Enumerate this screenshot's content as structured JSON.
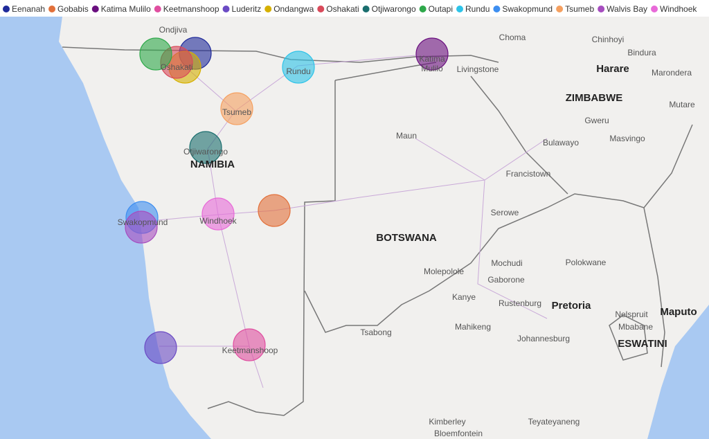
{
  "legend": {
    "items": [
      {
        "name": "Eenanah",
        "color": "#1f2a9a"
      },
      {
        "name": "Gobabis",
        "color": "#e2703a"
      },
      {
        "name": "Katima Mulilo",
        "color": "#6a0f7f"
      },
      {
        "name": "Keetmanshoop",
        "color": "#e04ea0"
      },
      {
        "name": "Luderitz",
        "color": "#6b4bc4"
      },
      {
        "name": "Ondangwa",
        "color": "#d6b000"
      },
      {
        "name": "Oshakati",
        "color": "#d94a5a"
      },
      {
        "name": "Otjiwarongo",
        "color": "#1a6e6e"
      },
      {
        "name": "Outapi",
        "color": "#2ea84a"
      },
      {
        "name": "Rundu",
        "color": "#2dc3e8"
      },
      {
        "name": "Swakopmund",
        "color": "#3d8ef0"
      },
      {
        "name": "Tsumeb",
        "color": "#f5a060"
      },
      {
        "name": "Walvis Bay",
        "color": "#a64dbf"
      },
      {
        "name": "Windhoek",
        "color": "#e86ad8"
      }
    ]
  },
  "map": {
    "labels": [
      "Ondjiva",
      "Oshakati",
      "Rundu",
      "Katima",
      "Mulilo",
      "Livingstone",
      "Choma",
      "Chinhoyi",
      "Bindura",
      "Harare",
      "Marondera",
      "Mutare",
      "ZIMBABWE",
      "Gweru",
      "Masvingo",
      "Bulawayo",
      "Tsumeb",
      "Otjiwarongo",
      "NAMIBIA",
      "Maun",
      "Francistown",
      "Swakopmund",
      "Windhoek",
      "Serowe",
      "BOTSWANA",
      "Mochudi",
      "Polokwane",
      "Molepolole",
      "Gaborone",
      "Kanye",
      "Rustenburg",
      "Pretoria",
      "Nelspruit",
      "Mbabane",
      "Maputo",
      "Tsabong",
      "Mahikeng",
      "Johannesburg",
      "ESWATINI",
      "Keetmanshoop",
      "Kimberley",
      "Teyateyaneng",
      "Bloemfontein"
    ]
  }
}
